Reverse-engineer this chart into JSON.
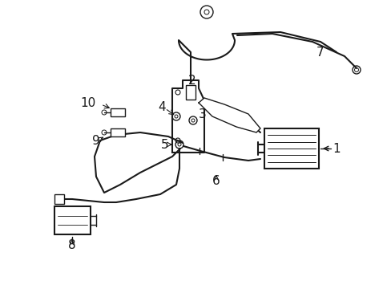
{
  "title": "",
  "background_color": "#ffffff",
  "line_color": "#1a1a1a",
  "label_color": "#1a1a1a",
  "label_fontsize": 11,
  "fig_width": 4.89,
  "fig_height": 3.6,
  "dpi": 100
}
